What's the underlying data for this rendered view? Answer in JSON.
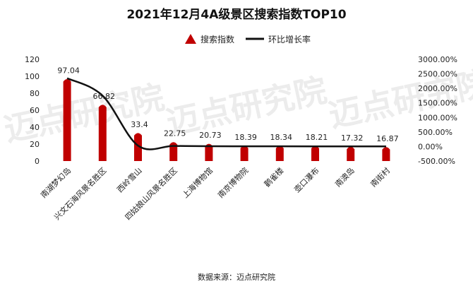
{
  "chart_data": {
    "type": "bar",
    "title": "2021年12月4A级景区搜索指数TOP10",
    "categories": [
      "南湖梦幻岛",
      "兴文石海风景名胜区",
      "西岭雪山",
      "四姑娘山风景名胜区",
      "上海博物馆",
      "南京博物院",
      "鹳雀楼",
      "壶口瀑布",
      "南澳岛",
      "南街村"
    ],
    "series": [
      {
        "name": "搜索指数",
        "type": "bar",
        "axis": "left",
        "values": [
          97.04,
          66.82,
          33.4,
          22.75,
          20.73,
          18.39,
          18.34,
          18.21,
          17.32,
          16.87
        ],
        "color": "#c00000"
      },
      {
        "name": "环比增长率",
        "type": "line",
        "axis": "right",
        "values": [
          2350,
          1750,
          30,
          20,
          10,
          8,
          6,
          5,
          5,
          4
        ],
        "color": "#111111"
      }
    ],
    "y_left": {
      "min": 0,
      "max": 120,
      "step": 20,
      "ticks": [
        "0",
        "20",
        "40",
        "60",
        "80",
        "100",
        "120"
      ]
    },
    "y_right": {
      "min": -500,
      "max": 3000,
      "step": 500,
      "ticks": [
        "-500.00%",
        "0.00%",
        "500.00%",
        "1000.00%",
        "1500.00%",
        "2000.00%",
        "2500.00%",
        "3000.00%"
      ]
    },
    "data_labels": [
      "97.04",
      "66.82",
      "33.4",
      "22.75",
      "20.73",
      "18.39",
      "18.34",
      "18.21",
      "17.32",
      "16.87"
    ],
    "legend_position": "top-center",
    "grid": false,
    "source": "数据来源：迈点研究院",
    "watermark": "迈点研究院"
  }
}
